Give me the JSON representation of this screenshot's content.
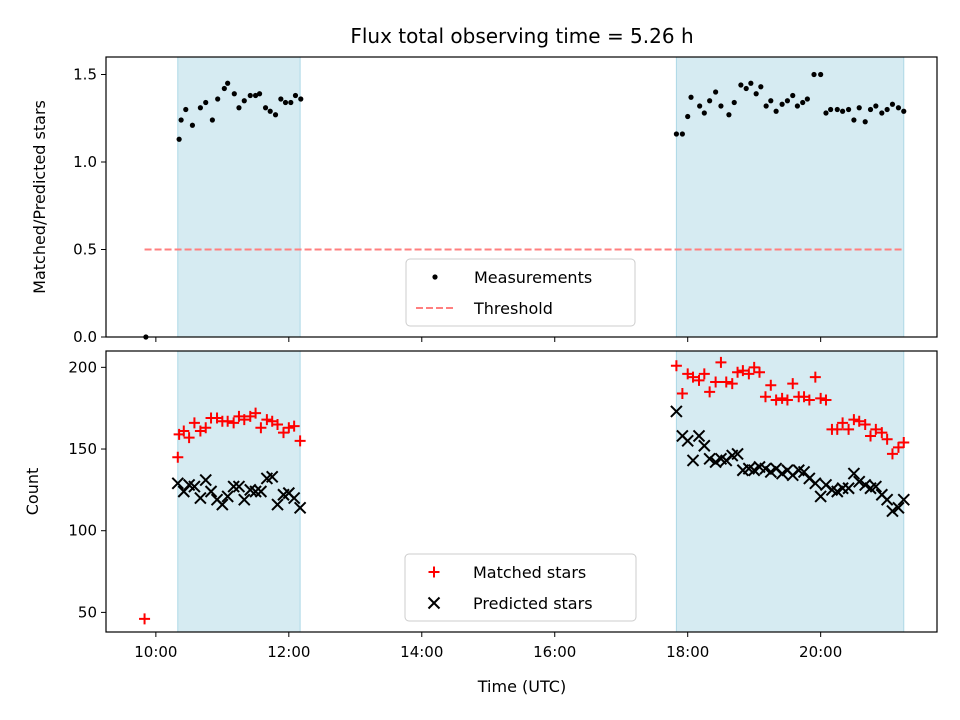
{
  "chart_data": {
    "title": "Flux total observing time = 5.26 h",
    "x_axis": {
      "label": "Time (UTC)",
      "range_hours": [
        9.25,
        21.75
      ],
      "ticks": [
        10,
        12,
        14,
        16,
        18,
        20
      ],
      "tick_labels": [
        "10:00",
        "12:00",
        "14:00",
        "16:00",
        "18:00",
        "20:00"
      ]
    },
    "shaded_windows_hours": [
      [
        10.33,
        12.17
      ],
      [
        17.83,
        21.25
      ]
    ],
    "shade_color": "#add8e6",
    "panels": [
      {
        "type": "scatter",
        "ylabel": "Matched/Predicted stars",
        "ylim": [
          0,
          1.6
        ],
        "y_ticks": [
          0.0,
          0.5,
          1.0,
          1.5
        ],
        "y_tick_labels": [
          "0.0",
          "0.5",
          "1.0",
          "1.5"
        ],
        "legend_position": "bottom-center",
        "series": [
          {
            "name": "Measurements",
            "marker": "dot",
            "color": "#000000",
            "points": [
              [
                9.85,
                0.0
              ],
              [
                10.35,
                1.13
              ],
              [
                10.38,
                1.24
              ],
              [
                10.45,
                1.3
              ],
              [
                10.55,
                1.21
              ],
              [
                10.67,
                1.31
              ],
              [
                10.75,
                1.34
              ],
              [
                10.85,
                1.24
              ],
              [
                10.93,
                1.36
              ],
              [
                11.03,
                1.42
              ],
              [
                11.08,
                1.45
              ],
              [
                11.18,
                1.39
              ],
              [
                11.25,
                1.31
              ],
              [
                11.33,
                1.35
              ],
              [
                11.42,
                1.38
              ],
              [
                11.5,
                1.38
              ],
              [
                11.56,
                1.39
              ],
              [
                11.65,
                1.31
              ],
              [
                11.72,
                1.29
              ],
              [
                11.8,
                1.27
              ],
              [
                11.88,
                1.36
              ],
              [
                11.95,
                1.34
              ],
              [
                12.03,
                1.34
              ],
              [
                12.1,
                1.38
              ],
              [
                12.18,
                1.36
              ],
              [
                17.83,
                1.16
              ],
              [
                17.92,
                1.16
              ],
              [
                18.0,
                1.26
              ],
              [
                18.05,
                1.37
              ],
              [
                18.18,
                1.32
              ],
              [
                18.25,
                1.28
              ],
              [
                18.33,
                1.35
              ],
              [
                18.42,
                1.4
              ],
              [
                18.5,
                1.32
              ],
              [
                18.62,
                1.27
              ],
              [
                18.7,
                1.34
              ],
              [
                18.8,
                1.44
              ],
              [
                18.88,
                1.42
              ],
              [
                18.95,
                1.45
              ],
              [
                19.03,
                1.39
              ],
              [
                19.1,
                1.43
              ],
              [
                19.18,
                1.32
              ],
              [
                19.25,
                1.35
              ],
              [
                19.33,
                1.29
              ],
              [
                19.42,
                1.33
              ],
              [
                19.5,
                1.35
              ],
              [
                19.58,
                1.38
              ],
              [
                19.65,
                1.32
              ],
              [
                19.73,
                1.34
              ],
              [
                19.8,
                1.36
              ],
              [
                19.9,
                1.5
              ],
              [
                20.0,
                1.5
              ],
              [
                20.08,
                1.28
              ],
              [
                20.15,
                1.3
              ],
              [
                20.25,
                1.3
              ],
              [
                20.33,
                1.29
              ],
              [
                20.42,
                1.3
              ],
              [
                20.5,
                1.24
              ],
              [
                20.58,
                1.31
              ],
              [
                20.67,
                1.23
              ],
              [
                20.75,
                1.3
              ],
              [
                20.83,
                1.32
              ],
              [
                20.92,
                1.28
              ],
              [
                21.0,
                1.3
              ],
              [
                21.08,
                1.33
              ],
              [
                21.17,
                1.31
              ],
              [
                21.25,
                1.29
              ]
            ]
          },
          {
            "name": "Threshold",
            "type": "line",
            "style": "dashed",
            "color": "#ff7f7f",
            "x": [
              9.83,
              21.25
            ],
            "y": [
              0.5,
              0.5
            ]
          }
        ]
      },
      {
        "type": "scatter",
        "ylabel": "Count",
        "ylim": [
          38,
          210
        ],
        "y_ticks": [
          50,
          100,
          150,
          200
        ],
        "y_tick_labels": [
          "50",
          "100",
          "150",
          "200"
        ],
        "legend_position": "bottom-center",
        "series": [
          {
            "name": "Matched stars",
            "marker": "plus",
            "color": "#ff0000",
            "points": [
              [
                9.83,
                46
              ],
              [
                10.33,
                145
              ],
              [
                10.35,
                159
              ],
              [
                10.42,
                161
              ],
              [
                10.5,
                157
              ],
              [
                10.58,
                166
              ],
              [
                10.67,
                161
              ],
              [
                10.75,
                163
              ],
              [
                10.83,
                169
              ],
              [
                10.92,
                169
              ],
              [
                11.0,
                167
              ],
              [
                11.08,
                167
              ],
              [
                11.17,
                166
              ],
              [
                11.25,
                170
              ],
              [
                11.33,
                168
              ],
              [
                11.42,
                170
              ],
              [
                11.5,
                172
              ],
              [
                11.58,
                163
              ],
              [
                11.67,
                168
              ],
              [
                11.75,
                167
              ],
              [
                11.83,
                165
              ],
              [
                11.92,
                160
              ],
              [
                12.0,
                163
              ],
              [
                12.08,
                164
              ],
              [
                12.17,
                155
              ],
              [
                17.83,
                201
              ],
              [
                17.92,
                184
              ],
              [
                18.0,
                196
              ],
              [
                18.08,
                194
              ],
              [
                18.17,
                192
              ],
              [
                18.25,
                196
              ],
              [
                18.33,
                185
              ],
              [
                18.42,
                191
              ],
              [
                18.5,
                203
              ],
              [
                18.58,
                191
              ],
              [
                18.67,
                190
              ],
              [
                18.75,
                197
              ],
              [
                18.83,
                198
              ],
              [
                18.92,
                196
              ],
              [
                19.0,
                200
              ],
              [
                19.08,
                197
              ],
              [
                19.17,
                182
              ],
              [
                19.25,
                189
              ],
              [
                19.33,
                180
              ],
              [
                19.42,
                181
              ],
              [
                19.5,
                180
              ],
              [
                19.58,
                190
              ],
              [
                19.67,
                182
              ],
              [
                19.75,
                182
              ],
              [
                19.83,
                180
              ],
              [
                19.92,
                194
              ],
              [
                20.0,
                181
              ],
              [
                20.08,
                180
              ],
              [
                20.17,
                162
              ],
              [
                20.25,
                162
              ],
              [
                20.33,
                166
              ],
              [
                20.42,
                162
              ],
              [
                20.5,
                168
              ],
              [
                20.58,
                167
              ],
              [
                20.67,
                165
              ],
              [
                20.75,
                158
              ],
              [
                20.83,
                162
              ],
              [
                20.92,
                160
              ],
              [
                21.0,
                156
              ],
              [
                21.08,
                147
              ],
              [
                21.17,
                151
              ],
              [
                21.25,
                154
              ]
            ]
          },
          {
            "name": "Predicted stars",
            "marker": "x",
            "color": "#000000",
            "points": [
              [
                10.33,
                129
              ],
              [
                10.42,
                124
              ],
              [
                10.5,
                128
              ],
              [
                10.58,
                127
              ],
              [
                10.67,
                120
              ],
              [
                10.75,
                131
              ],
              [
                10.83,
                124
              ],
              [
                10.92,
                119
              ],
              [
                11.0,
                116
              ],
              [
                11.08,
                121
              ],
              [
                11.17,
                127
              ],
              [
                11.25,
                127
              ],
              [
                11.33,
                119
              ],
              [
                11.42,
                125
              ],
              [
                11.5,
                124
              ],
              [
                11.58,
                124
              ],
              [
                11.67,
                132
              ],
              [
                11.75,
                133
              ],
              [
                11.83,
                116
              ],
              [
                11.92,
                122
              ],
              [
                12.0,
                123
              ],
              [
                12.08,
                120
              ],
              [
                12.17,
                114
              ],
              [
                17.83,
                173
              ],
              [
                17.92,
                158
              ],
              [
                18.0,
                155
              ],
              [
                18.08,
                143
              ],
              [
                18.17,
                158
              ],
              [
                18.25,
                152
              ],
              [
                18.33,
                144
              ],
              [
                18.42,
                142
              ],
              [
                18.5,
                144
              ],
              [
                18.58,
                143
              ],
              [
                18.67,
                146
              ],
              [
                18.75,
                147
              ],
              [
                18.83,
                137
              ],
              [
                18.92,
                138
              ],
              [
                19.0,
                137
              ],
              [
                19.08,
                139
              ],
              [
                19.17,
                138
              ],
              [
                19.25,
                136
              ],
              [
                19.33,
                138
              ],
              [
                19.42,
                135
              ],
              [
                19.5,
                137
              ],
              [
                19.58,
                134
              ],
              [
                19.67,
                137
              ],
              [
                19.75,
                136
              ],
              [
                19.83,
                132
              ],
              [
                19.92,
                129
              ],
              [
                20.0,
                121
              ],
              [
                20.08,
                128
              ],
              [
                20.17,
                125
              ],
              [
                20.25,
                124
              ],
              [
                20.33,
                126
              ],
              [
                20.42,
                126
              ],
              [
                20.5,
                135
              ],
              [
                20.58,
                130
              ],
              [
                20.67,
                128
              ],
              [
                20.75,
                126
              ],
              [
                20.83,
                127
              ],
              [
                20.92,
                122
              ],
              [
                21.0,
                119
              ],
              [
                21.08,
                112
              ],
              [
                21.17,
                114
              ],
              [
                21.25,
                119
              ]
            ]
          }
        ]
      }
    ]
  }
}
